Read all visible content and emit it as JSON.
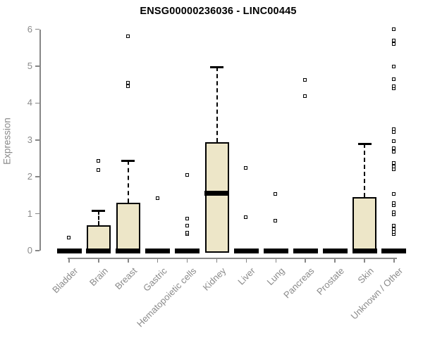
{
  "title": "ENSG00000236036 - LINC00445",
  "chart_data": {
    "type": "boxplot",
    "title": "ENSG00000236036 - LINC00445",
    "xlabel": "",
    "ylabel": "Expression",
    "ylim": [
      0,
      6
    ],
    "yticks": [
      0,
      1,
      2,
      3,
      4,
      5,
      6
    ],
    "grid": false,
    "legend": "none",
    "box_fill_color": "#EDE6C8",
    "box_stroke_color": "#000000",
    "axis_color": "#8A8A8A",
    "title_color": "#000000",
    "categories": [
      "Bladder",
      "Brain",
      "Breast",
      "Gastric",
      "Hematopoietic cells",
      "Kidney",
      "Liver",
      "Lung",
      "Pancreas",
      "Prostate",
      "Skin",
      "Unknown / Other"
    ],
    "series": [
      {
        "category": "Bladder",
        "whisker_low": 0,
        "q1": 0,
        "median": 0,
        "q3": 0,
        "whisker_high": 0,
        "outliers": [
          0.34
        ]
      },
      {
        "category": "Brain",
        "whisker_low": 0,
        "q1": 0,
        "median": 0,
        "q3": 0.68,
        "whisker_high": 1.08,
        "outliers": [
          2.18,
          2.42
        ]
      },
      {
        "category": "Breast",
        "whisker_low": 0,
        "q1": 0,
        "median": 0,
        "q3": 1.3,
        "whisker_high": 2.44,
        "outliers": [
          4.44,
          4.55,
          5.81
        ]
      },
      {
        "category": "Gastric",
        "whisker_low": 0,
        "q1": 0,
        "median": 0,
        "q3": 0,
        "whisker_high": 0,
        "outliers": [
          1.42
        ]
      },
      {
        "category": "Hematopoietic cells",
        "whisker_low": 0,
        "q1": 0,
        "median": 0,
        "q3": 0,
        "whisker_high": 0,
        "outliers": [
          0.44,
          0.48,
          0.66,
          0.85,
          2.05
        ]
      },
      {
        "category": "Kidney",
        "whisker_low": 0,
        "q1": 0,
        "median": 1.6,
        "q3": 2.94,
        "whisker_high": 4.98,
        "outliers": []
      },
      {
        "category": "Liver",
        "whisker_low": 0,
        "q1": 0,
        "median": 0,
        "q3": 0,
        "whisker_high": 0,
        "outliers": [
          0.9,
          2.23
        ]
      },
      {
        "category": "Lung",
        "whisker_low": 0,
        "q1": 0,
        "median": 0,
        "q3": 0,
        "whisker_high": 0,
        "outliers": [
          0.8,
          1.53
        ]
      },
      {
        "category": "Pancreas",
        "whisker_low": 0,
        "q1": 0,
        "median": 0,
        "q3": 0,
        "whisker_high": 0,
        "outliers": [
          4.18,
          4.62
        ]
      },
      {
        "category": "Prostate",
        "whisker_low": 0,
        "q1": 0,
        "median": 0,
        "q3": 0,
        "whisker_high": 0,
        "outliers": []
      },
      {
        "category": "Skin",
        "whisker_low": 0,
        "q1": 0,
        "median": 0,
        "q3": 1.45,
        "whisker_high": 2.9,
        "outliers": []
      },
      {
        "category": "Unknown / Other",
        "whisker_low": 0,
        "q1": 0,
        "median": 0,
        "q3": 0,
        "whisker_high": 0,
        "outliers": [
          0.44,
          0.5,
          0.58,
          0.66,
          0.98,
          1.04,
          1.22,
          1.28,
          1.52,
          2.2,
          2.28,
          2.36,
          2.68,
          2.76,
          2.96,
          3.2,
          3.28,
          4.38,
          4.45,
          4.64,
          4.99,
          5.6,
          5.68,
          5.99
        ]
      }
    ]
  }
}
